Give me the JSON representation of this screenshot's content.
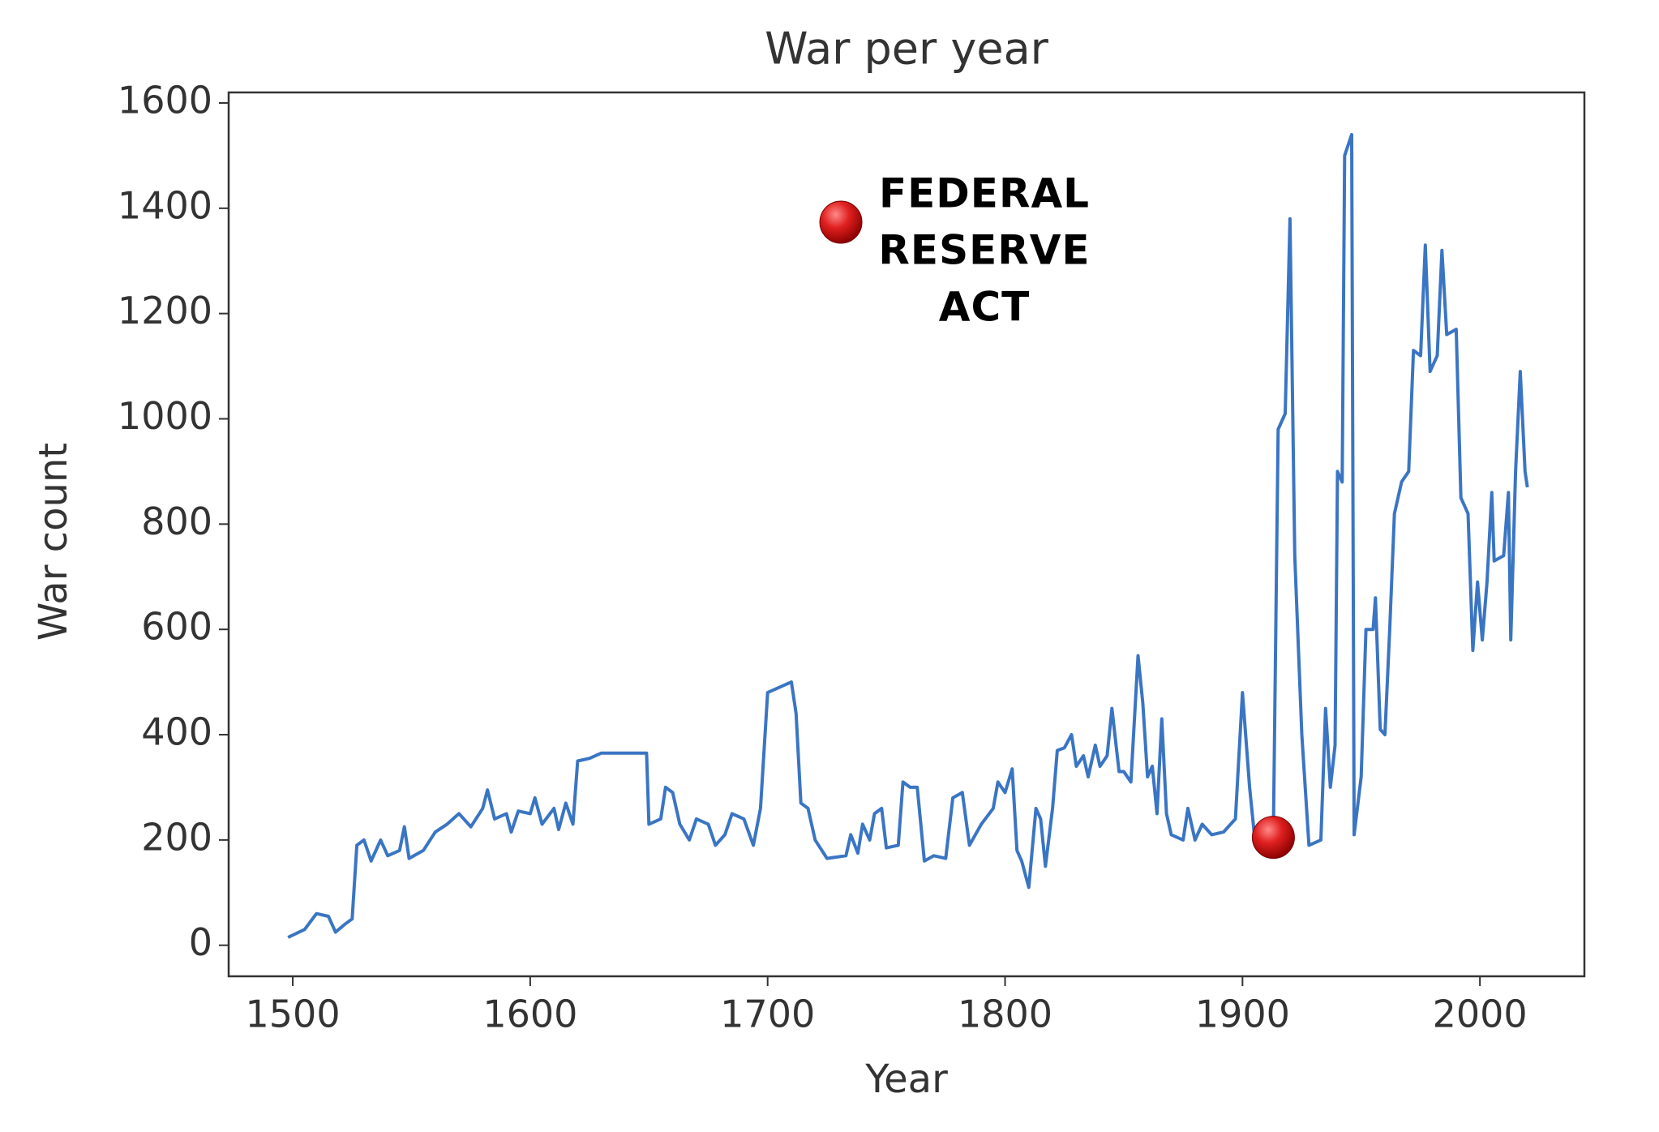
{
  "chart_data": {
    "type": "line",
    "title": "War per year",
    "xlabel": "Year",
    "ylabel": "War count",
    "xlim": [
      1473,
      2044
    ],
    "ylim": [
      -59,
      1620
    ],
    "xticks": [
      1500,
      1600,
      1700,
      1800,
      1900,
      2000
    ],
    "yticks": [
      0,
      200,
      400,
      600,
      800,
      1000,
      1200,
      1400,
      1600
    ],
    "grid": false,
    "series": [
      {
        "name": "War count",
        "color": "#3a75c4",
        "x": [
          1498,
          1505,
          1510,
          1515,
          1518,
          1522,
          1525,
          1527,
          1530,
          1533,
          1537,
          1540,
          1545,
          1547,
          1549,
          1555,
          1560,
          1565,
          1570,
          1575,
          1580,
          1582,
          1585,
          1590,
          1592,
          1595,
          1600,
          1602,
          1605,
          1610,
          1612,
          1615,
          1618,
          1620,
          1625,
          1630,
          1640,
          1649,
          1650,
          1655,
          1657,
          1660,
          1663,
          1667,
          1670,
          1675,
          1678,
          1682,
          1685,
          1690,
          1694,
          1697,
          1700,
          1705,
          1710,
          1712,
          1714,
          1717,
          1720,
          1725,
          1733,
          1735,
          1738,
          1740,
          1743,
          1745,
          1748,
          1750,
          1755,
          1757,
          1760,
          1763,
          1766,
          1770,
          1775,
          1778,
          1782,
          1785,
          1790,
          1795,
          1797,
          1800,
          1803,
          1805,
          1807,
          1810,
          1813,
          1815,
          1817,
          1820,
          1822,
          1825,
          1828,
          1830,
          1833,
          1835,
          1838,
          1840,
          1843,
          1845,
          1848,
          1850,
          1853,
          1856,
          1858,
          1860,
          1862,
          1864,
          1866,
          1868,
          1870,
          1875,
          1877,
          1880,
          1883,
          1887,
          1892,
          1897,
          1900,
          1903,
          1905,
          1910,
          1913,
          1915,
          1918,
          1920,
          1922,
          1925,
          1928,
          1933,
          1935,
          1937,
          1939,
          1940,
          1942,
          1943,
          1946,
          1947,
          1950,
          1952,
          1955,
          1956,
          1958,
          1960,
          1962,
          1964,
          1967,
          1970,
          1972,
          1975,
          1977,
          1979,
          1982,
          1984,
          1986,
          1990,
          1992,
          1995,
          1997,
          1999,
          2001,
          2003,
          2005,
          2006,
          2010,
          2012,
          2013,
          2015,
          2017,
          2019,
          2020
        ],
        "values": [
          15,
          30,
          60,
          55,
          25,
          40,
          50,
          190,
          200,
          160,
          200,
          170,
          180,
          225,
          165,
          180,
          215,
          230,
          250,
          225,
          260,
          295,
          240,
          250,
          215,
          255,
          250,
          280,
          230,
          260,
          220,
          270,
          230,
          350,
          355,
          365,
          365,
          365,
          230,
          240,
          300,
          290,
          230,
          200,
          240,
          230,
          190,
          210,
          250,
          240,
          190,
          260,
          480,
          490,
          500,
          440,
          270,
          260,
          200,
          165,
          170,
          210,
          175,
          230,
          200,
          250,
          260,
          185,
          190,
          310,
          300,
          300,
          160,
          170,
          165,
          280,
          290,
          190,
          230,
          260,
          310,
          290,
          335,
          180,
          160,
          110,
          260,
          240,
          150,
          260,
          370,
          375,
          400,
          340,
          360,
          320,
          380,
          340,
          360,
          450,
          330,
          330,
          310,
          550,
          460,
          320,
          340,
          250,
          430,
          250,
          210,
          200,
          260,
          200,
          230,
          210,
          215,
          240,
          480,
          300,
          210,
          200,
          210,
          980,
          1010,
          1380,
          740,
          400,
          190,
          200,
          450,
          300,
          380,
          900,
          880,
          1500,
          1540,
          210,
          320,
          600,
          600,
          660,
          410,
          400,
          600,
          820,
          880,
          900,
          1130,
          1120,
          1330,
          1090,
          1120,
          1320,
          1160,
          1170,
          850,
          820,
          560,
          690,
          580,
          690,
          860,
          730,
          740,
          860,
          580,
          900,
          1090,
          900,
          870
        ]
      }
    ],
    "annotations": [
      {
        "lines": [
          "FEDERAL",
          "RESERVE",
          "ACT"
        ],
        "x": 1913,
        "y": 205,
        "color": "#d61f1f"
      }
    ]
  }
}
